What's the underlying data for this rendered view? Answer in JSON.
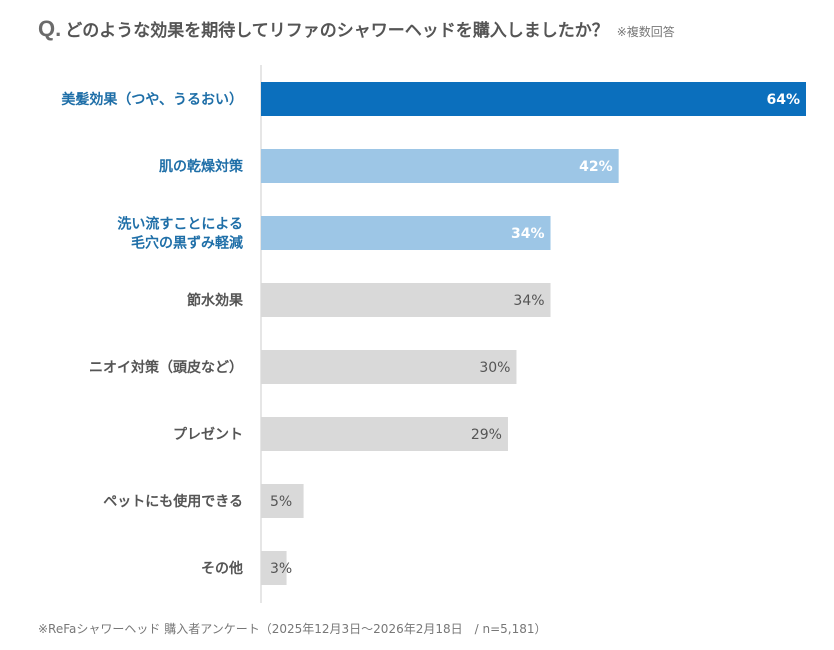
{
  "header": {
    "q_label": "Q.",
    "question": "どのような効果を期待してリファのシャワーヘッドを購入しましたか？",
    "note": "※複数回答"
  },
  "footer": {
    "source": "※ReFaシャワーヘッド 購入者アンケート（2025年12月3日～2026年2月18日　/ n=5,181）"
  },
  "colors": {
    "highlight_strong": "#0b6fbd",
    "highlight_light": "#9dc6e6",
    "neutral": "#d9d9d9",
    "label_highlight": "#1f6fa8",
    "label_normal": "#555555",
    "axis": "#cccccc"
  },
  "chart_data": {
    "type": "bar",
    "orientation": "horizontal",
    "title": "どのような効果を期待してリファのシャワーヘッドを購入しましたか？",
    "xlabel": "",
    "ylabel": "",
    "xlim": [
      0,
      64
    ],
    "unit": "%",
    "categories": [
      [
        "美髪効果（つや、うるおい）"
      ],
      [
        "肌の乾燥対策"
      ],
      [
        "洗い流すことによる",
        "毛穴の黒ずみ軽減"
      ],
      [
        "節水効果"
      ],
      [
        "ニオイ対策（頭皮など）"
      ],
      [
        "プレゼント"
      ],
      [
        "ペットにも使用できる"
      ],
      [
        "その他"
      ]
    ],
    "values": [
      64,
      42,
      34,
      34,
      30,
      29,
      5,
      3
    ],
    "value_labels": [
      "64%",
      "42%",
      "34%",
      "34%",
      "30%",
      "29%",
      "5%",
      "3%"
    ],
    "highlight": [
      "strong",
      "light",
      "light",
      "none",
      "none",
      "none",
      "none",
      "none"
    ]
  }
}
